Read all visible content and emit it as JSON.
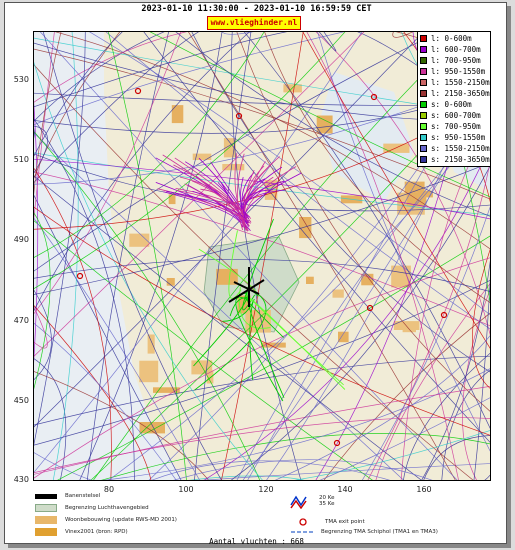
{
  "header": {
    "title": "2023-01-10 11:30:00 - 2023-01-10 16:59:59 CET",
    "site": "www.vlieghinder.nl"
  },
  "axes": {
    "y_ticks": [
      "530",
      "510",
      "490",
      "470",
      "450",
      "430"
    ],
    "x_ticks": [
      "80",
      "100",
      "120",
      "140",
      "160"
    ]
  },
  "legend": {
    "items": [
      {
        "label": "l: 0-600m",
        "color": "#cc0000"
      },
      {
        "label": "l: 600-700m",
        "color": "#9900cc"
      },
      {
        "label": "l: 700-950m",
        "color": "#336600"
      },
      {
        "label": "l: 950-1550m",
        "color": "#cc3399"
      },
      {
        "label": "l: 1550-2150m",
        "color": "#cc6666"
      },
      {
        "label": "l: 2150-3650m",
        "color": "#993333"
      },
      {
        "label": "s: 0-600m",
        "color": "#00cc00"
      },
      {
        "label": "s: 600-700m",
        "color": "#99cc00"
      },
      {
        "label": "s: 700-950m",
        "color": "#66ff33"
      },
      {
        "label": "s: 950-1550m",
        "color": "#33cccc"
      },
      {
        "label": "s: 1550-2150m",
        "color": "#6666cc"
      },
      {
        "label": "s: 2150-3650m",
        "color": "#333399"
      }
    ]
  },
  "key": {
    "runways": "Banenstelsel",
    "airport_boundary": "Begrenzing Luchthavengebied",
    "residential": "Woonbebouwing (update RWS-MD 2001)",
    "vinex": "Vinex2001 (bron: RPD)",
    "noise_20": "20 Ke",
    "noise_35": "35 Ke",
    "tma_exit": "TMA exit point",
    "tma_boundary": "Begrenzing TMA Schiphol  (TMA1 en TMA3)"
  },
  "footer": "Aantal vluchten : 668"
}
